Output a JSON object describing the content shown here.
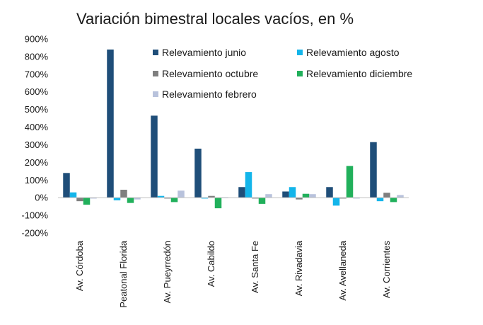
{
  "chart_data": {
    "type": "bar",
    "title": "Variación bimestral locales vacíos, en %",
    "xlabel": "",
    "ylabel": "",
    "ylim": [
      -200,
      900
    ],
    "yticks": [
      -200,
      -100,
      0,
      100,
      200,
      300,
      400,
      500,
      600,
      700,
      800,
      900
    ],
    "ytick_labels": [
      "-200%",
      "-100%",
      "0%",
      "100%",
      "200%",
      "300%",
      "400%",
      "500%",
      "600%",
      "700%",
      "800%",
      "900%"
    ],
    "grid": false,
    "legend_position": "top-right",
    "categories": [
      "Av. Córdoba",
      "Peatonal Florida",
      "Av. Pueyrredón",
      "Av. Cabildo",
      "Av. Santa Fe",
      "Av. Rivadavia",
      "Av. Avellaneda",
      "Av. Corrientes"
    ],
    "series": [
      {
        "name": "Relevamiento junio",
        "color": "#1f4e79",
        "values": [
          140,
          840,
          465,
          278,
          60,
          35,
          60,
          315
        ]
      },
      {
        "name": "Relevamiento agosto",
        "color": "#13b5ea",
        "values": [
          30,
          -15,
          10,
          -5,
          145,
          60,
          -45,
          -20
        ]
      },
      {
        "name": "Relevamiento octubre",
        "color": "#7f7f7f",
        "values": [
          -20,
          45,
          -5,
          10,
          -5,
          -10,
          -5,
          28
        ]
      },
      {
        "name": "Relevamiento diciembre",
        "color": "#21b05b",
        "values": [
          -40,
          -30,
          -25,
          -60,
          -35,
          22,
          180,
          -25
        ]
      },
      {
        "name": "Relevamiento febrero",
        "color": "#b8c2dc",
        "values": [
          -5,
          -10,
          40,
          0,
          20,
          20,
          -5,
          15
        ]
      }
    ]
  }
}
